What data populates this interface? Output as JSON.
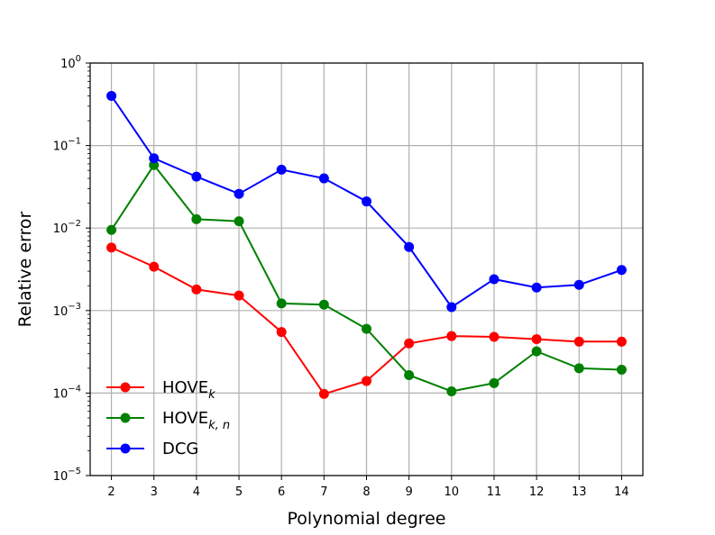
{
  "chart_data": {
    "type": "line",
    "x": [
      2,
      3,
      4,
      5,
      6,
      7,
      8,
      9,
      10,
      11,
      12,
      13,
      14
    ],
    "xlabel": "Polynomial degree",
    "ylabel": "Relative error",
    "yscale": "log",
    "xlim": [
      1.5,
      14.5
    ],
    "ylim": [
      1e-05,
      1
    ],
    "xticks": [
      "2",
      "3",
      "4",
      "5",
      "6",
      "7",
      "8",
      "9",
      "10",
      "11",
      "12",
      "13",
      "14"
    ],
    "yticks": [
      {
        "value": 1,
        "base": "10",
        "exp": "0"
      },
      {
        "value": 0.1,
        "base": "10",
        "exp": "−1"
      },
      {
        "value": 0.01,
        "base": "10",
        "exp": "−2"
      },
      {
        "value": 0.001,
        "base": "10",
        "exp": "−3"
      },
      {
        "value": 0.0001,
        "base": "10",
        "exp": "−4"
      },
      {
        "value": 1e-05,
        "base": "10",
        "exp": "−5"
      }
    ],
    "grid": true,
    "legend_position": "bottom-left",
    "series": [
      {
        "name": "HOVE",
        "name_subscript": "k",
        "color": "#ff0000",
        "values": [
          0.0058,
          0.0034,
          0.0018,
          0.00152,
          0.00055,
          9.75e-05,
          0.00014,
          0.0004,
          0.00049,
          0.00048,
          0.00045,
          0.00042,
          0.00042
        ]
      },
      {
        "name": "HOVE",
        "name_subscript": "k, n",
        "color": "#008000",
        "values": [
          0.0095,
          0.058,
          0.0128,
          0.0121,
          0.00122,
          0.00118,
          0.0006,
          0.000165,
          0.000105,
          0.000132,
          0.00032,
          0.0002,
          0.000192
        ]
      },
      {
        "name": "DCG",
        "name_subscript": "",
        "color": "#0000ff",
        "values": [
          0.4,
          0.07,
          0.042,
          0.026,
          0.051,
          0.04,
          0.021,
          0.0059,
          0.0011,
          0.0024,
          0.0019,
          0.00205,
          0.0031
        ]
      }
    ]
  }
}
